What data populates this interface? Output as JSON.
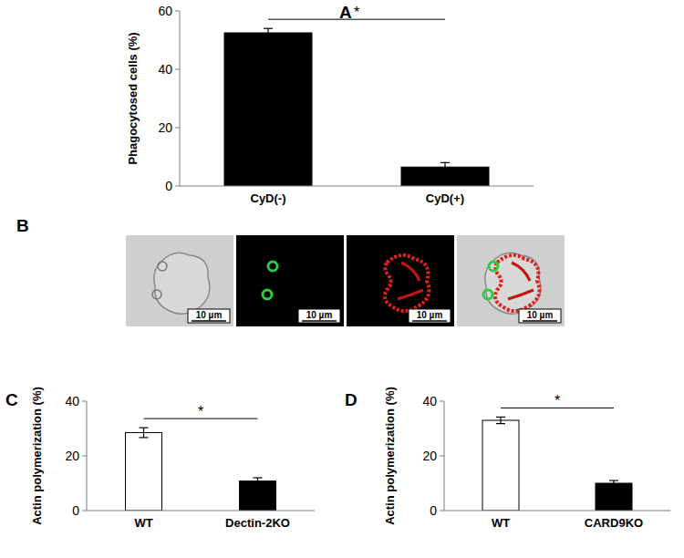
{
  "chart_data": [
    {
      "type": "bar",
      "title": "A",
      "y_label": "Phagocytosed cells  (%)",
      "categories": [
        "CyD(-)",
        "CyD(+)"
      ],
      "values": [
        52.5,
        6.5
      ],
      "errors": [
        1.5,
        1.5
      ],
      "colors": [
        "#000000",
        "#000000"
      ],
      "ylim": [
        0,
        60
      ],
      "yticks": [
        0,
        20,
        40,
        60
      ],
      "grid": false,
      "annotations": [
        "*"
      ]
    },
    {
      "type": "bar",
      "title": "C",
      "y_label": "Actin polymerization (%)",
      "categories": [
        "WT",
        "Dectin-2KO"
      ],
      "values": [
        28.5,
        10.8
      ],
      "errors": [
        1.8,
        1.2
      ],
      "colors": [
        "#ffffff",
        "#000000"
      ],
      "ylim": [
        0,
        40
      ],
      "yticks": [
        0,
        20,
        40
      ],
      "grid": false,
      "annotations": [
        "*"
      ]
    },
    {
      "type": "bar",
      "title": "D",
      "y_label": "Actin polymerization (%)",
      "categories": [
        "WT",
        "CARD9KO"
      ],
      "values": [
        33,
        10
      ],
      "errors": [
        1.2,
        1.0
      ],
      "colors": [
        "#ffffff",
        "#000000"
      ],
      "ylim": [
        0,
        40
      ],
      "yticks": [
        0,
        20,
        40
      ],
      "grid": false,
      "annotations": [
        "*"
      ]
    }
  ],
  "image_panel": {
    "label": "B",
    "scale_bars": [
      "10 µm",
      "10 µm",
      "10 µm",
      "10 µm"
    ]
  }
}
